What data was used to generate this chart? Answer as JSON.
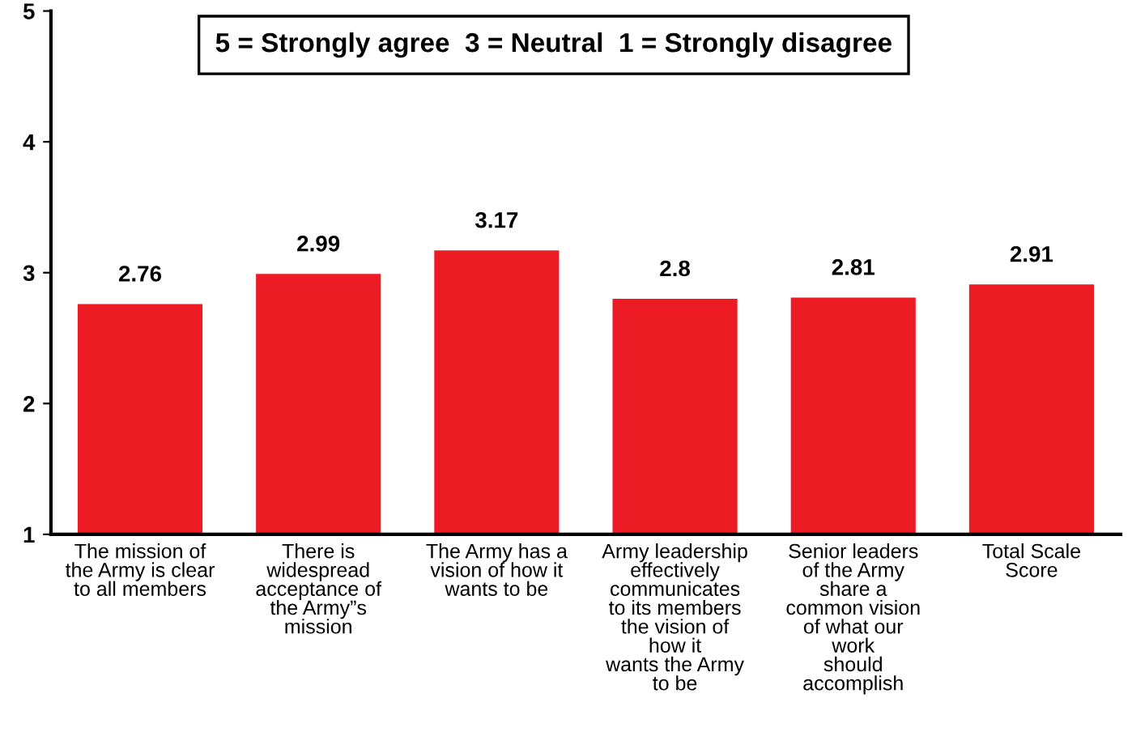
{
  "chart_data": {
    "type": "bar",
    "categories": [
      "The mission of\nthe Army is clear\nto all members",
      "There is\nwidespread\nacceptance of\nthe Army”s\nmission",
      "The Army has a\nvision of how it\nwants to be",
      "Army leadership\neffectively\ncommunicates\nto its members\nthe vision of\nhow it\nwants the Army\nto be",
      "Senior leaders\nof the Army\nshare a\ncommon vision\nof what our\nwork\nshould\naccomplish",
      "Total Scale\nScore"
    ],
    "values": [
      2.76,
      2.99,
      3.17,
      2.8,
      2.81,
      2.91
    ],
    "color": "#ed1c24",
    "ylim": [
      1,
      5
    ],
    "yticks": [
      1,
      2,
      3,
      4,
      5
    ],
    "data_labels": true,
    "grid": false,
    "legend": false,
    "annotations": [
      "5 = Strongly agree  3 = Neutral  1 = Strongly disagree"
    ]
  }
}
